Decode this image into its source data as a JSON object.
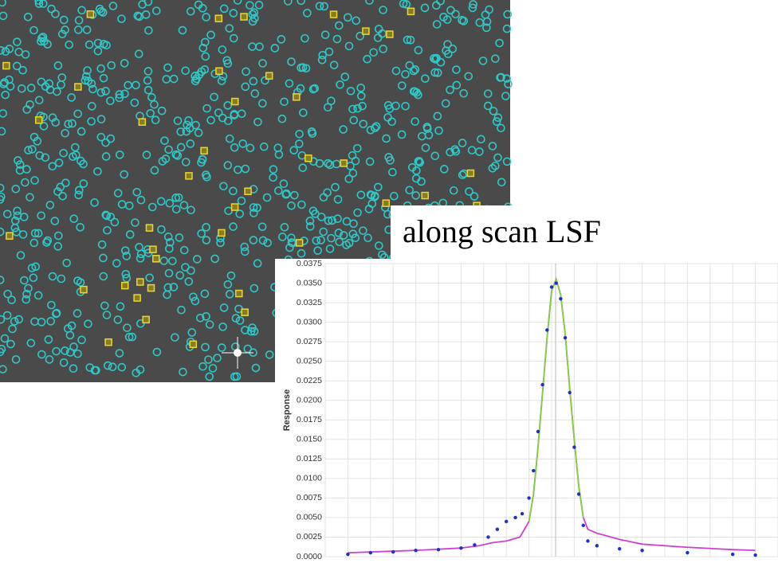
{
  "chart_data": {
    "type": "line",
    "title": "along scan LSF",
    "y_label": "Response",
    "ylim": [
      0,
      0.0375
    ],
    "xlim": [
      0,
      100
    ],
    "yticks": [
      {
        "value": 0,
        "label": "0.0000"
      },
      {
        "value": 0.0025,
        "label": "0.0025"
      },
      {
        "value": 0.005,
        "label": "0.0050"
      },
      {
        "value": 0.0075,
        "label": "0.0075"
      },
      {
        "value": 0.01,
        "label": "0.0100"
      },
      {
        "value": 0.0125,
        "label": "0.0125"
      },
      {
        "value": 0.015,
        "label": "0.0150"
      },
      {
        "value": 0.0175,
        "label": "0.0175"
      },
      {
        "value": 0.02,
        "label": "0.0200"
      },
      {
        "value": 0.0225,
        "label": "0.0225"
      },
      {
        "value": 0.025,
        "label": "0.0250"
      },
      {
        "value": 0.0275,
        "label": "0.0275"
      },
      {
        "value": 0.03,
        "label": "0.0300"
      },
      {
        "value": 0.0325,
        "label": "0.0325"
      },
      {
        "value": 0.035,
        "label": "0.0350"
      },
      {
        "value": 0.0375,
        "label": "0.0375"
      }
    ],
    "grid": true,
    "series": [
      {
        "color": "#d040d0",
        "style": "line",
        "x": [
          5,
          20,
          30,
          34,
          37,
          40,
          43,
          45,
          46,
          47,
          48,
          49,
          50,
          51,
          52,
          53,
          54,
          55,
          56,
          57,
          58,
          60,
          65,
          70,
          80,
          90,
          95
        ],
        "values": [
          0.0005,
          0.0008,
          0.0011,
          0.0014,
          0.0018,
          0.002,
          0.0025,
          0.0045,
          0.008,
          0.014,
          0.021,
          0.028,
          0.034,
          0.0355,
          0.0335,
          0.0285,
          0.0215,
          0.015,
          0.009,
          0.005,
          0.0035,
          0.003,
          0.0022,
          0.0016,
          0.0012,
          0.0009,
          0.0008
        ]
      },
      {
        "color": "#80d040",
        "style": "line",
        "x": [
          45,
          46,
          47,
          48,
          49,
          50,
          51,
          52,
          53,
          54,
          55,
          56,
          57
        ],
        "values": [
          0.0045,
          0.008,
          0.014,
          0.021,
          0.028,
          0.034,
          0.0355,
          0.0335,
          0.0285,
          0.0215,
          0.015,
          0.009,
          0.005
        ]
      },
      {
        "color": "#2030c0",
        "style": "points",
        "x": [
          5,
          10,
          15,
          20,
          25,
          30,
          33,
          36,
          38,
          40,
          42,
          43.5,
          45,
          46,
          47,
          48,
          49,
          50,
          51,
          52,
          53,
          54,
          55,
          56,
          57,
          58,
          60,
          65,
          70,
          80,
          90,
          95
        ],
        "values": [
          0.0003,
          0.0005,
          0.0006,
          0.0008,
          0.0009,
          0.0011,
          0.0015,
          0.0025,
          0.0035,
          0.0045,
          0.005,
          0.0055,
          0.0075,
          0.011,
          0.016,
          0.022,
          0.029,
          0.0345,
          0.035,
          0.033,
          0.028,
          0.021,
          0.014,
          0.008,
          0.004,
          0.002,
          0.0014,
          0.001,
          0.0008,
          0.0005,
          0.0003,
          0.0002
        ]
      }
    ]
  }
}
